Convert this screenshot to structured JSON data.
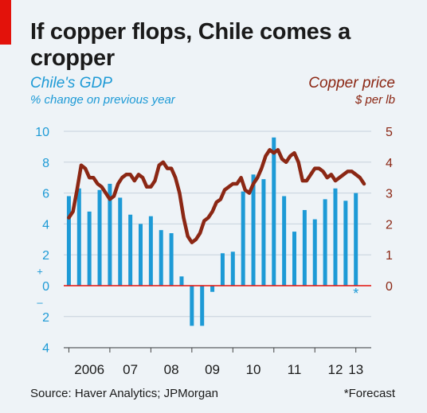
{
  "title": "If copper flops, Chile comes a cropper",
  "source": "Source: Haver Analytics; JPMorgan",
  "footnote": "*Forecast",
  "colors": {
    "gdp": "#1d9ad6",
    "copper": "#8b2714",
    "zero_line": "#e3120b",
    "grid": "#c6d2dc"
  },
  "chart_data": {
    "type": "bar",
    "left_axis": {
      "label": "Chile's GDP",
      "sublabel": "% change on previous year",
      "ticks": [
        "10",
        "8",
        "6",
        "4",
        "2",
        "0",
        "2",
        "4"
      ],
      "tick_values": [
        10,
        8,
        6,
        4,
        2,
        0,
        -2,
        -4
      ],
      "range": [
        -4,
        10
      ],
      "sign_markers": {
        "plus": "+",
        "minus": "–"
      }
    },
    "right_axis": {
      "label": "Copper price",
      "sublabel": "$ per lb",
      "ticks": [
        "5",
        "4",
        "3",
        "2",
        "1",
        "0"
      ],
      "tick_values": [
        5,
        4,
        3,
        2,
        1,
        0
      ],
      "range": [
        -2,
        5
      ]
    },
    "x_labels": [
      {
        "label": "2006",
        "x": 2006.5
      },
      {
        "label": "07",
        "x": 2007.5
      },
      {
        "label": "08",
        "x": 2008.5
      },
      {
        "label": "09",
        "x": 2009.5
      },
      {
        "label": "10",
        "x": 2010.5
      },
      {
        "label": "11",
        "x": 2011.5
      },
      {
        "label": "12",
        "x": 2012.5
      },
      {
        "label": "13",
        "x": 2013.0
      }
    ],
    "x_range": [
      2005.875,
      2013.375
    ],
    "series": [
      {
        "name": "Chile's GDP",
        "type": "bar",
        "axis": "left",
        "x": [
          2006.0,
          2006.25,
          2006.5,
          2006.75,
          2007.0,
          2007.25,
          2007.5,
          2007.75,
          2008.0,
          2008.25,
          2008.5,
          2008.75,
          2009.0,
          2009.25,
          2009.5,
          2009.75,
          2010.0,
          2010.25,
          2010.5,
          2010.75,
          2011.0,
          2011.25,
          2011.5,
          2011.75,
          2012.0,
          2012.25,
          2012.5,
          2012.75,
          2013.0
        ],
        "values": [
          5.8,
          6.3,
          4.8,
          6.2,
          6.6,
          5.7,
          4.6,
          4.0,
          4.5,
          3.6,
          3.4,
          0.6,
          -2.6,
          -2.6,
          -0.4,
          2.1,
          2.2,
          6.1,
          7.2,
          6.9,
          9.6,
          5.8,
          3.5,
          4.9,
          4.3,
          5.6,
          6.3,
          5.5,
          6.0
        ]
      },
      {
        "name": "Copper price",
        "type": "line",
        "axis": "right",
        "points": [
          [
            2006.0,
            2.2
          ],
          [
            2006.1,
            2.4
          ],
          [
            2006.2,
            3.1
          ],
          [
            2006.3,
            3.9
          ],
          [
            2006.4,
            3.8
          ],
          [
            2006.5,
            3.5
          ],
          [
            2006.6,
            3.5
          ],
          [
            2006.7,
            3.3
          ],
          [
            2006.8,
            3.2
          ],
          [
            2006.9,
            3.0
          ],
          [
            2007.0,
            2.8
          ],
          [
            2007.1,
            2.9
          ],
          [
            2007.2,
            3.3
          ],
          [
            2007.3,
            3.5
          ],
          [
            2007.4,
            3.6
          ],
          [
            2007.5,
            3.6
          ],
          [
            2007.6,
            3.4
          ],
          [
            2007.7,
            3.6
          ],
          [
            2007.8,
            3.5
          ],
          [
            2007.9,
            3.2
          ],
          [
            2008.0,
            3.2
          ],
          [
            2008.1,
            3.4
          ],
          [
            2008.2,
            3.9
          ],
          [
            2008.3,
            4.0
          ],
          [
            2008.4,
            3.8
          ],
          [
            2008.5,
            3.8
          ],
          [
            2008.6,
            3.5
          ],
          [
            2008.7,
            3.0
          ],
          [
            2008.8,
            2.2
          ],
          [
            2008.9,
            1.6
          ],
          [
            2009.0,
            1.4
          ],
          [
            2009.1,
            1.5
          ],
          [
            2009.2,
            1.7
          ],
          [
            2009.3,
            2.1
          ],
          [
            2009.4,
            2.2
          ],
          [
            2009.5,
            2.4
          ],
          [
            2009.6,
            2.7
          ],
          [
            2009.7,
            2.8
          ],
          [
            2009.8,
            3.1
          ],
          [
            2009.9,
            3.2
          ],
          [
            2010.0,
            3.3
          ],
          [
            2010.1,
            3.3
          ],
          [
            2010.2,
            3.5
          ],
          [
            2010.3,
            3.1
          ],
          [
            2010.4,
            3.0
          ],
          [
            2010.5,
            3.3
          ],
          [
            2010.6,
            3.5
          ],
          [
            2010.7,
            3.8
          ],
          [
            2010.8,
            4.2
          ],
          [
            2010.9,
            4.4
          ],
          [
            2011.0,
            4.3
          ],
          [
            2011.1,
            4.4
          ],
          [
            2011.2,
            4.1
          ],
          [
            2011.3,
            4.0
          ],
          [
            2011.4,
            4.2
          ],
          [
            2011.5,
            4.3
          ],
          [
            2011.6,
            4.0
          ],
          [
            2011.7,
            3.4
          ],
          [
            2011.8,
            3.4
          ],
          [
            2011.9,
            3.6
          ],
          [
            2012.0,
            3.8
          ],
          [
            2012.1,
            3.8
          ],
          [
            2012.2,
            3.7
          ],
          [
            2012.3,
            3.5
          ],
          [
            2012.4,
            3.6
          ],
          [
            2012.5,
            3.4
          ],
          [
            2012.6,
            3.5
          ],
          [
            2012.7,
            3.6
          ],
          [
            2012.8,
            3.7
          ],
          [
            2012.9,
            3.7
          ],
          [
            2013.0,
            3.6
          ],
          [
            2013.1,
            3.5
          ],
          [
            2013.2,
            3.3
          ]
        ]
      }
    ],
    "forecast_marker": {
      "x": 2013.0,
      "value": -0.2,
      "symbol": "*"
    },
    "grid": true
  }
}
